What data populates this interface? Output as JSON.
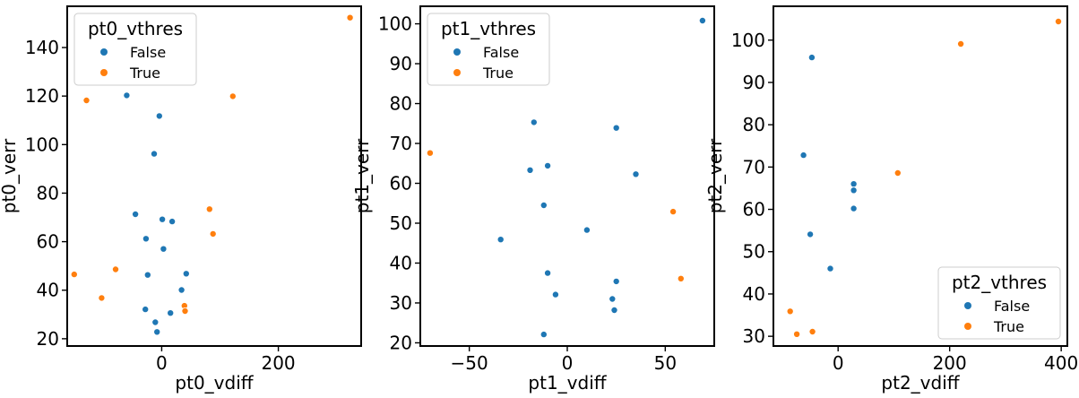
{
  "colors": {
    "false": "#1f77b4",
    "true": "#ff7f0e"
  },
  "chart_data": [
    {
      "type": "scatter",
      "title": "",
      "xlabel": "pt0_vdiff",
      "ylabel": "pt0_verr",
      "xlim": [
        -162,
        342
      ],
      "ylim": [
        17,
        157
      ],
      "xticks": [
        0,
        200
      ],
      "yticks": [
        20,
        40,
        60,
        80,
        100,
        120,
        140
      ],
      "legend": {
        "title": "pt0_vthres",
        "placement": "top-left",
        "entries": [
          "False",
          "True"
        ]
      },
      "series": [
        {
          "name": "False",
          "points": [
            [
              -60,
              120.3
            ],
            [
              -4,
              111.8
            ],
            [
              -13,
              96.2
            ],
            [
              -45,
              71.3
            ],
            [
              1,
              69.2
            ],
            [
              18,
              68.3
            ],
            [
              -27,
              61.2
            ],
            [
              3,
              57.0
            ],
            [
              -24,
              46.3
            ],
            [
              42,
              46.8
            ],
            [
              34,
              40.1
            ],
            [
              -28,
              32.1
            ],
            [
              -11,
              26.8
            ],
            [
              -8,
              22.8
            ],
            [
              15,
              30.6
            ]
          ]
        },
        {
          "name": "True",
          "points": [
            [
              323,
              152.3
            ],
            [
              122,
              119.9
            ],
            [
              -129,
              118.2
            ],
            [
              82,
              73.4
            ],
            [
              88,
              63.2
            ],
            [
              -150,
              46.5
            ],
            [
              -79,
              48.6
            ],
            [
              -103,
              36.8
            ],
            [
              39,
              33.6
            ],
            [
              40,
              31.4
            ]
          ]
        }
      ]
    },
    {
      "type": "scatter",
      "title": "",
      "xlabel": "pt1_vdiff",
      "ylabel": "pt1_verr",
      "xlim": [
        -75,
        75
      ],
      "ylim": [
        19.2,
        104.4
      ],
      "xticks": [
        -50,
        0,
        50
      ],
      "yticks": [
        20,
        30,
        40,
        50,
        60,
        70,
        80,
        90,
        100
      ],
      "legend": {
        "title": "pt1_vthres",
        "placement": "top-left",
        "entries": [
          "False",
          "True"
        ]
      },
      "series": [
        {
          "name": "False",
          "points": [
            [
              69,
              100.8
            ],
            [
              -17,
              75.3
            ],
            [
              25,
              73.9
            ],
            [
              -10,
              64.4
            ],
            [
              -19,
              63.3
            ],
            [
              35,
              62.3
            ],
            [
              -12,
              54.5
            ],
            [
              10,
              48.3
            ],
            [
              -34,
              45.9
            ],
            [
              -10,
              37.5
            ],
            [
              25,
              35.4
            ],
            [
              -6,
              32.1
            ],
            [
              23,
              31.0
            ],
            [
              24,
              28.2
            ],
            [
              -12,
              22.1
            ]
          ]
        },
        {
          "name": "True",
          "points": [
            [
              -70,
              67.6
            ],
            [
              54,
              52.9
            ],
            [
              58,
              36.1
            ]
          ]
        }
      ]
    },
    {
      "type": "scatter",
      "title": "",
      "xlabel": "pt2_vdiff",
      "ylabel": "pt2_verr",
      "xlim": [
        -116,
        411
      ],
      "ylim": [
        27.7,
        108
      ],
      "xticks": [
        0,
        200,
        400
      ],
      "yticks": [
        30,
        40,
        50,
        60,
        70,
        80,
        90,
        100
      ],
      "legend": {
        "title": "pt2_vthres",
        "placement": "bottom-right",
        "entries": [
          "False",
          "True"
        ]
      },
      "series": [
        {
          "name": "False",
          "points": [
            [
              -47,
              95.9
            ],
            [
              -62,
              72.8
            ],
            [
              28,
              66.0
            ],
            [
              28,
              64.5
            ],
            [
              28,
              60.2
            ],
            [
              -50,
              54.1
            ],
            [
              -14,
              46.0
            ]
          ]
        },
        {
          "name": "True",
          "points": [
            [
              395,
              104.4
            ],
            [
              220,
              99.1
            ],
            [
              107,
              68.6
            ],
            [
              -86,
              35.9
            ],
            [
              -74,
              30.5
            ],
            [
              -46,
              31.1
            ]
          ]
        }
      ]
    }
  ]
}
